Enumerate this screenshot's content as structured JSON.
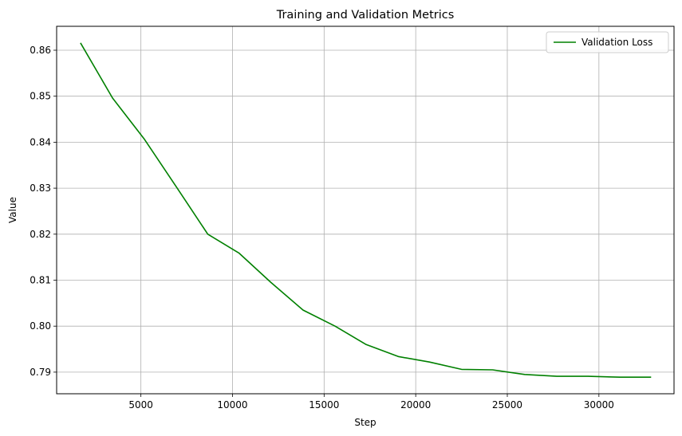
{
  "chart_data": {
    "type": "line",
    "title": "Training and Validation Metrics",
    "xlabel": "Step",
    "ylabel": "Value",
    "xlim": [
      400,
      34100
    ],
    "ylim": [
      0.7853,
      0.8652
    ],
    "xticks": [
      5000,
      10000,
      15000,
      20000,
      25000,
      30000
    ],
    "yticks": [
      0.79,
      0.8,
      0.81,
      0.82,
      0.83,
      0.84,
      0.85,
      0.86
    ],
    "grid": true,
    "legend_position": "top-right",
    "series": [
      {
        "name": "Validation Loss",
        "color": "#008000",
        "x": [
          1700,
          3450,
          5200,
          6950,
          8650,
          10350,
          12100,
          13850,
          15600,
          17300,
          19050,
          20750,
          22500,
          24200,
          25950,
          27700,
          29400,
          31150,
          32850
        ],
        "y": [
          0.8616,
          0.8496,
          0.8406,
          0.8302,
          0.82,
          0.8159,
          0.8095,
          0.8035,
          0.8,
          0.796,
          0.7934,
          0.7922,
          0.7906,
          0.7905,
          0.7895,
          0.7891,
          0.7891,
          0.7889,
          0.7889
        ]
      }
    ]
  }
}
